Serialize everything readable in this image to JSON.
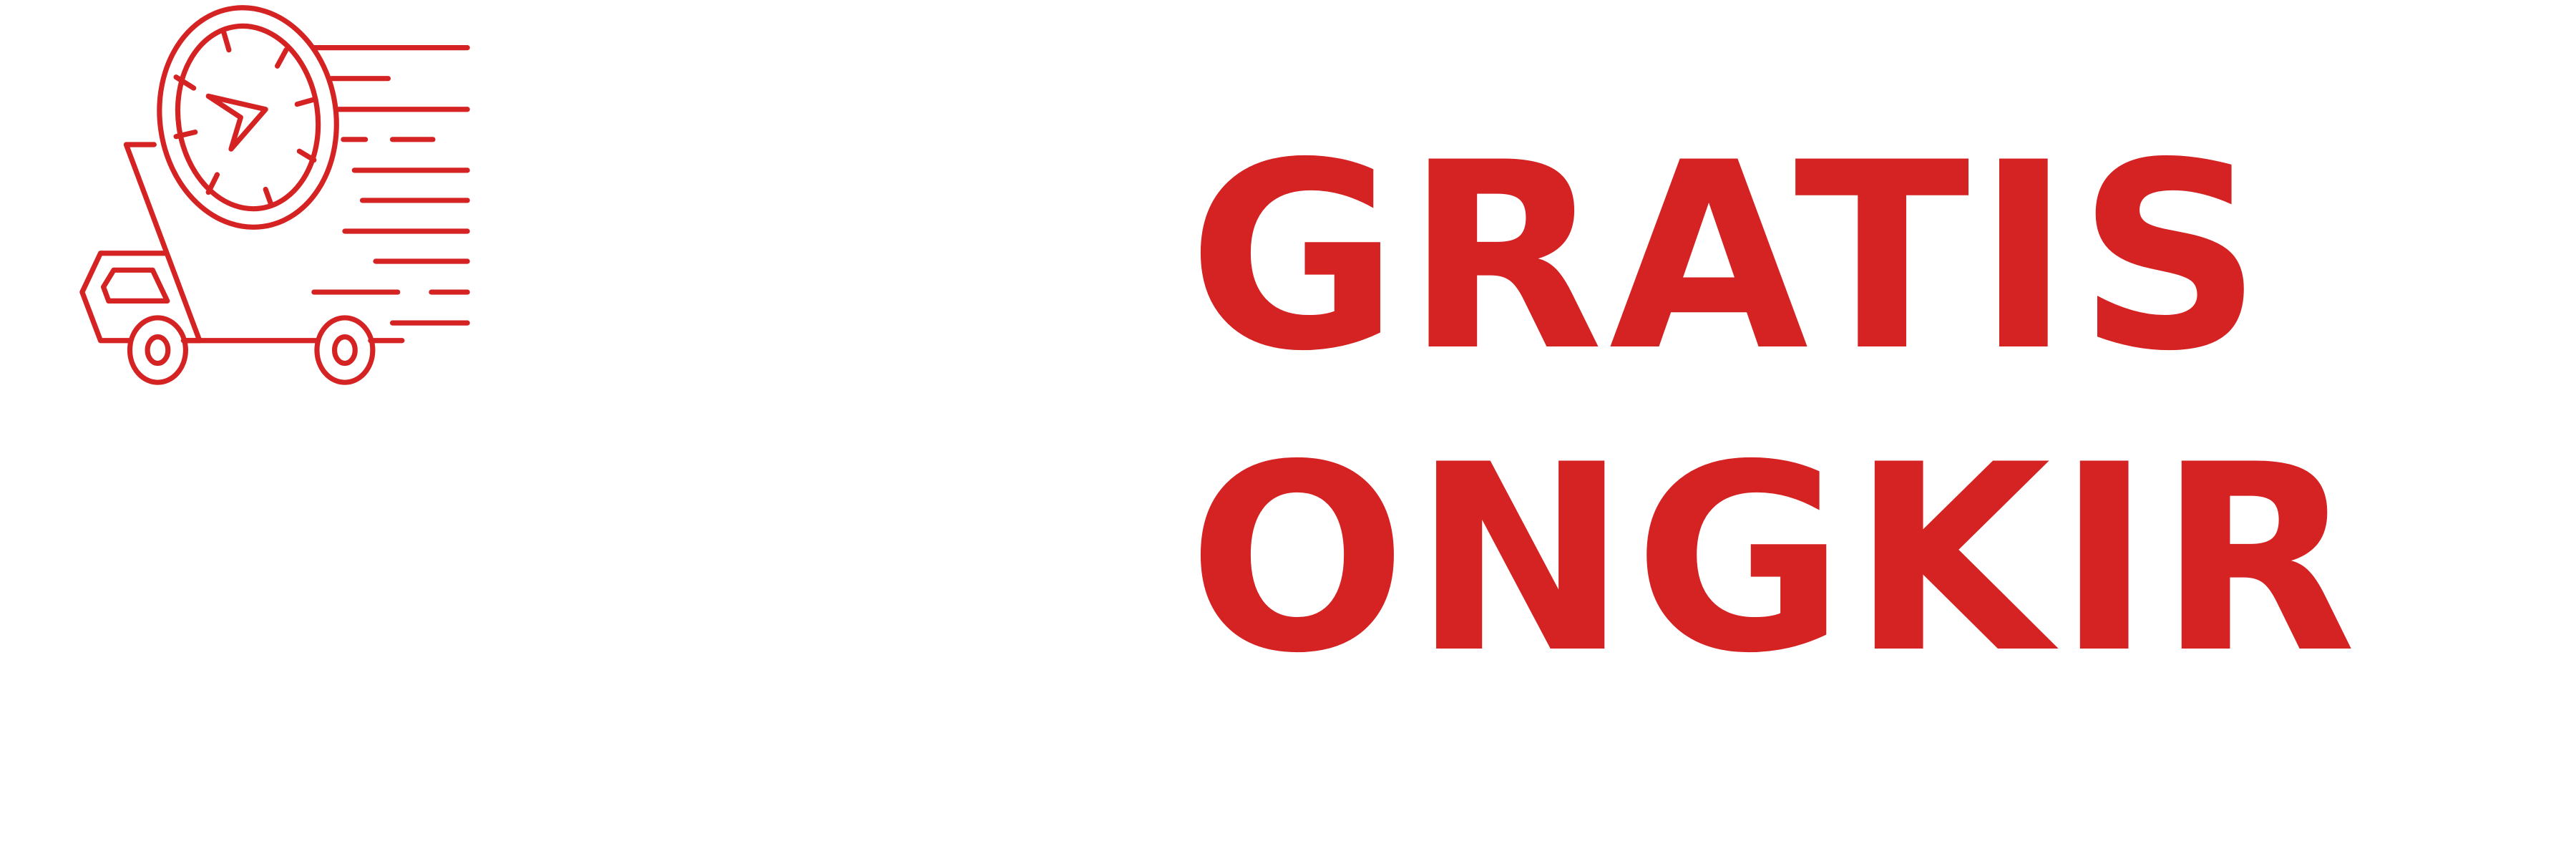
{
  "colors": {
    "brand": "#d52323",
    "background": "#ffffff"
  },
  "logo": {
    "icon": "delivery-truck-with-clock-icon"
  },
  "headline": {
    "line1": "GRATIS",
    "line2": "ONGKIR"
  }
}
